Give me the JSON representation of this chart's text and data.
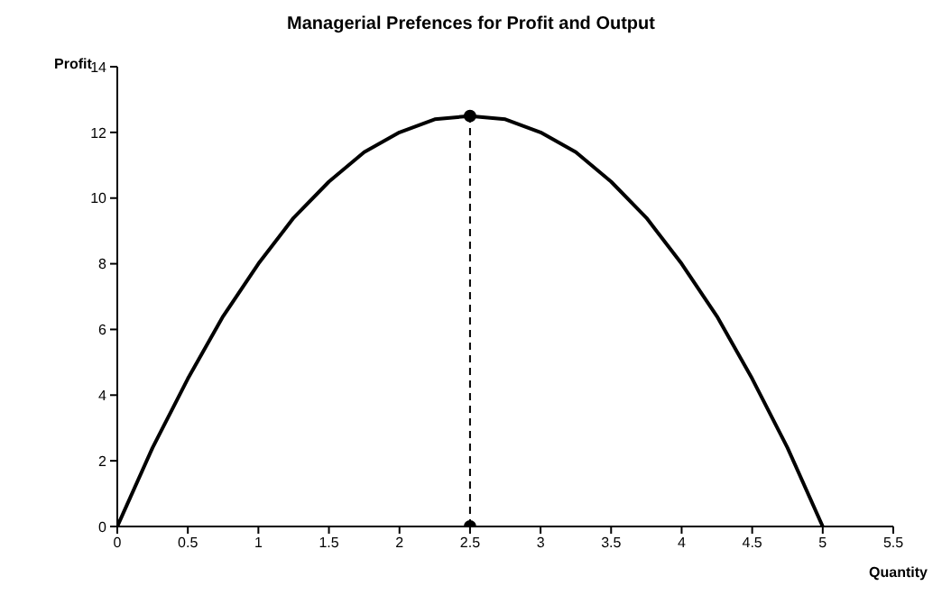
{
  "chart_data": {
    "type": "line",
    "title": "Managerial Prefences for Profit and Output",
    "xlabel": "Quantity",
    "ylabel": "Profit",
    "xlim": [
      0,
      5.5
    ],
    "xticks": [
      0,
      0.5,
      1,
      1.5,
      2,
      2.5,
      3,
      3.5,
      4,
      4.5,
      5,
      5.5
    ],
    "ylim": [
      0,
      14
    ],
    "yticks": [
      0,
      2,
      4,
      6,
      8,
      10,
      12,
      14
    ],
    "ref_lines": [
      {
        "axis": "x",
        "value": 2.5,
        "color": "#000000",
        "line_style": "dashed"
      }
    ],
    "series": [
      {
        "color": "#000000",
        "line_style": "solid",
        "marker": "none",
        "x": [
          0,
          0.25,
          0.5,
          0.75,
          1,
          1.25,
          1.5,
          1.75,
          2,
          2.25,
          2.5,
          2.75,
          3,
          3.25,
          3.5,
          3.75,
          4,
          4.25,
          4.5,
          4.75,
          5
        ],
        "values": [
          0,
          2.4,
          4.5,
          6.4,
          8,
          9.4,
          10.5,
          11.4,
          12,
          12.4,
          12.5,
          12.4,
          12,
          11.4,
          10.5,
          9.4,
          8,
          6.4,
          4.5,
          2.4,
          0
        ]
      },
      {
        "type": "scatter",
        "color": "#000000",
        "marker": "circle",
        "x": [
          2.5,
          2.5
        ],
        "values": [
          0,
          12.5
        ]
      }
    ]
  }
}
